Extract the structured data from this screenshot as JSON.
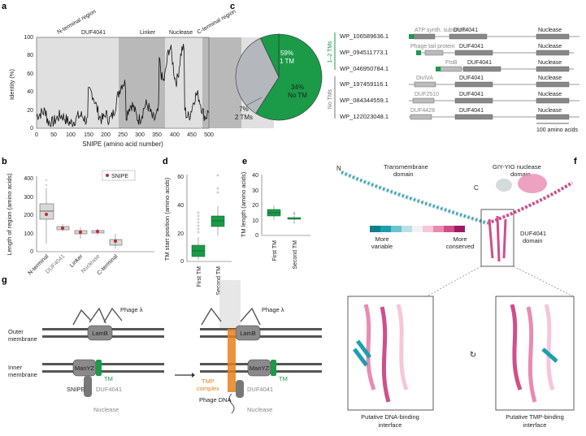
{
  "panel_labels": {
    "a": "a",
    "b": "b",
    "c": "c",
    "d": "d",
    "e": "e",
    "f": "f",
    "g": "g"
  },
  "panel_a": {
    "regions": [
      "N-terminal region",
      "DUF4041",
      "Linker",
      "Nuclease",
      "C-terminal region"
    ],
    "xlabel": "SNIPE (amino acid number)",
    "ylabel": "Identity (%)",
    "xticks": [
      "0",
      "50",
      "100",
      "150",
      "200",
      "250",
      "300",
      "350",
      "400",
      "450",
      "500"
    ],
    "yticks": [
      "0",
      "20",
      "40",
      "60",
      "80",
      "100"
    ]
  },
  "panel_b": {
    "ylabel": "Length of region (amino acids)",
    "yticks": [
      "0",
      "100",
      "200",
      "300",
      "400"
    ],
    "categories": [
      "N-terminal",
      "DUF4041",
      "Linker",
      "Nuclease",
      "C-terminal"
    ],
    "legend": "SNIPE"
  },
  "panel_c": {
    "pie_1tm": "59%",
    "pie_1tm_sub": "1 TM",
    "pie_notm": "34%",
    "pie_notm_sub": "No TM",
    "pie_2tm": "7%",
    "pie_2tm_sub": "2 TMs",
    "group_tm": "1–2 TMs",
    "group_notm": "No TMs",
    "accessions": [
      "WP_106589636.1",
      "WP_094511773.1",
      "WP_046950784.1",
      "WP_197459116.1",
      "WP_084344559.1",
      "WP_122023048.1"
    ],
    "domain_labels": [
      "ATP synth. subunit b",
      "DUF4041",
      "Nuclease",
      "Phage tail protein",
      "DUF4041",
      "Nuclease",
      "FtsB",
      "DUF4041",
      "Nuclease",
      "DivIVA",
      "DUF4041",
      "Nuclease",
      "DUF2510",
      "DUF4041",
      "Nuclease",
      "DUF4428",
      "DUF4041",
      "Nuclease"
    ],
    "scale": "100 amino acids"
  },
  "panel_d": {
    "ylabel": "TM start position (amino acids)",
    "yticks": [
      "0",
      "20",
      "40",
      "60"
    ],
    "categories": [
      "First TM",
      "Second TM"
    ]
  },
  "panel_e": {
    "ylabel": "TM length (amino acids)",
    "yticks": [
      "0",
      "10",
      "20",
      "30",
      "40"
    ],
    "categories": [
      "First TM",
      "Second TM"
    ]
  },
  "panel_f": {
    "n_label": "N",
    "c_label": "C",
    "tm_domain": "Transmembrane domain",
    "nuc_domain": "GIY-YIG nuclease domain",
    "duf_domain": "DUF4041 domain",
    "more_variable": "More variable",
    "more_conserved": "More conserved",
    "colors": [
      "#0e7f8c",
      "#1a9fb0",
      "#6cc3cf",
      "#b9e0e6",
      "#f2f2f2",
      "#f6c6da",
      "#e88bb3",
      "#cf4f8a",
      "#9c1b60"
    ],
    "dna_interface": "Putative DNA-binding interface",
    "tmp_interface": "Putative TMP-binding interface"
  },
  "panel_g": {
    "phage1": "Phage λ",
    "phage2": "Phage λ",
    "outer": "Outer membrane",
    "inner": "Inner membrane",
    "lamb1": "LamB",
    "lamb2": "LamB",
    "manyz1": "ManYZ",
    "manyz2": "ManYZ",
    "tm1": "TM",
    "tm2": "TM",
    "snipe": "SNIPE",
    "duf1": "DUF4041",
    "duf2": "DUF4041",
    "nuclease1": "Nuclease",
    "nuclease2": "Nuclease",
    "tmp": "TMP complex",
    "phage_dna": "Phage DNA"
  },
  "colors": {
    "green": "#1b9a48",
    "grey_dark": "#8a8a8a",
    "grey_light": "#d8d8d8",
    "orange": "#e8801c",
    "accent_pink": "#c2185b",
    "teal": "#1a9fb0"
  }
}
